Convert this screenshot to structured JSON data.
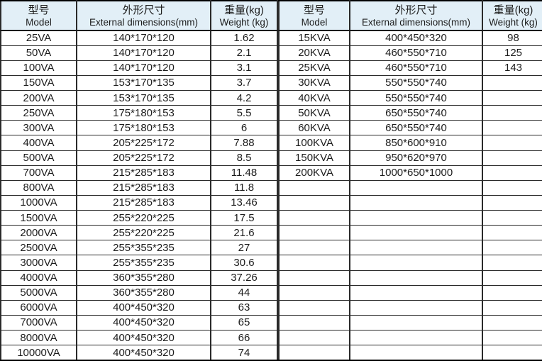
{
  "tables": [
    {
      "name": "va-models",
      "headers": [
        {
          "zh": "型号",
          "en": "Model"
        },
        {
          "zh": "外形尺寸",
          "en": "External dimensions(mm)"
        },
        {
          "zh": "重量(kg)",
          "en": "Weight (kg)"
        }
      ],
      "rows": [
        [
          "25VA",
          "140*170*120",
          "1.62"
        ],
        [
          "50VA",
          "140*170*120",
          "2.1"
        ],
        [
          "100VA",
          "140*170*120",
          "3.1"
        ],
        [
          "150VA",
          "153*170*135",
          "3.7"
        ],
        [
          "200VA",
          "153*170*135",
          "4.2"
        ],
        [
          "250VA",
          "175*180*153",
          "5.5"
        ],
        [
          "300VA",
          "175*180*153",
          "6"
        ],
        [
          "400VA",
          "205*225*172",
          "7.88"
        ],
        [
          "500VA",
          "205*225*172",
          "8.5"
        ],
        [
          "700VA",
          "215*285*183",
          "11.48"
        ],
        [
          "800VA",
          "215*285*183",
          "11.8"
        ],
        [
          "1000VA",
          "215*285*183",
          "13.46"
        ],
        [
          "1500VA",
          "255*220*225",
          "17.5"
        ],
        [
          "2000VA",
          "255*220*225",
          "21.6"
        ],
        [
          "2500VA",
          "255*355*235",
          "27"
        ],
        [
          "3000VA",
          "255*355*235",
          "30.6"
        ],
        [
          "4000VA",
          "360*355*280",
          "37.26"
        ],
        [
          "5000VA",
          "360*355*280",
          "44"
        ],
        [
          "6000VA",
          "400*450*320",
          "63"
        ],
        [
          "7000VA",
          "400*450*320",
          "65"
        ],
        [
          "8000VA",
          "400*450*320",
          "66"
        ],
        [
          "10000VA",
          "400*450*320",
          "74"
        ]
      ]
    },
    {
      "name": "kva-models",
      "headers": [
        {
          "zh": "型号",
          "en": "Model"
        },
        {
          "zh": "外形尺寸",
          "en": "External dimensions(mm)"
        },
        {
          "zh": "重量(kg)",
          "en": "Weight (kg)"
        }
      ],
      "rows": [
        [
          "15KVA",
          "400*450*320",
          "98"
        ],
        [
          "20KVA",
          "460*550*710",
          "125"
        ],
        [
          "25KVA",
          "460*550*710",
          "143"
        ],
        [
          "30KVA",
          "550*550*740",
          ""
        ],
        [
          "40KVA",
          "550*550*740",
          ""
        ],
        [
          "50KVA",
          "650*550*740",
          ""
        ],
        [
          "60KVA",
          "650*550*740",
          ""
        ],
        [
          "100KVA",
          "850*600*910",
          ""
        ],
        [
          "150KVA",
          "950*620*970",
          ""
        ],
        [
          "200KVA",
          "1000*650*1000",
          ""
        ],
        [
          "",
          "",
          ""
        ],
        [
          "",
          "",
          ""
        ],
        [
          "",
          "",
          ""
        ],
        [
          "",
          "",
          ""
        ],
        [
          "",
          "",
          ""
        ],
        [
          "",
          "",
          ""
        ],
        [
          "",
          "",
          ""
        ],
        [
          "",
          "",
          ""
        ],
        [
          "",
          "",
          ""
        ],
        [
          "",
          "",
          ""
        ],
        [
          "",
          "",
          ""
        ],
        [
          "",
          "",
          ""
        ]
      ]
    }
  ],
  "colors": {
    "header_bg": "#e2eff7",
    "grid_line": "#2a2a2a",
    "text": "#1c1c1c"
  }
}
